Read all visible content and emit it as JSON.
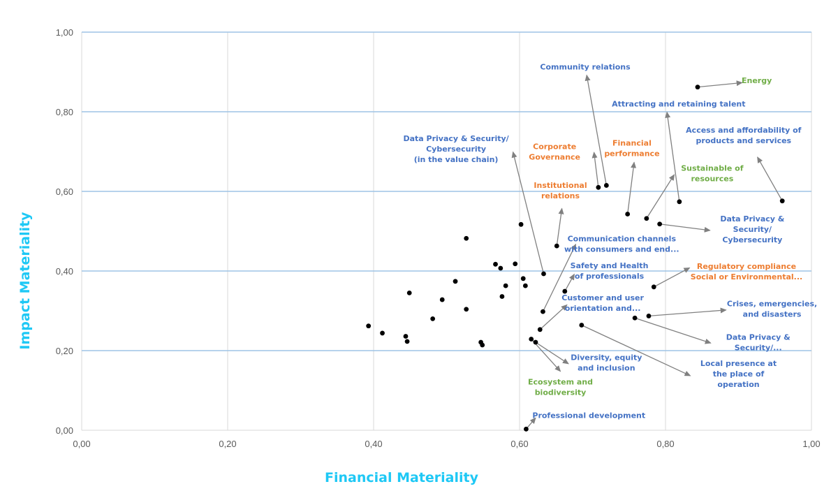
{
  "colors": {
    "background": "#ffffff",
    "gridline": "#9DC3E6",
    "vgridline": "#D9D9D9",
    "axis_title": "#1EC8F5",
    "tick_label": "#595959",
    "point": "#000000",
    "leader": "#808080",
    "social": "#4472C4",
    "environmental": "#70AD47",
    "governance": "#ED7D31"
  },
  "chart_data": {
    "type": "scatter",
    "xlabel": "Financial Materiality",
    "ylabel": "Impact Materiality",
    "xlim": [
      0,
      1
    ],
    "ylim": [
      0,
      1
    ],
    "xticks": [
      "0,00",
      "0,20",
      "0,40",
      "0,60",
      "0,80",
      "1,00"
    ],
    "yticks": [
      "0,00",
      "0,20",
      "0,40",
      "0,60",
      "0,80",
      "1,00"
    ],
    "horizontal_grid": true,
    "vertical_grid": true,
    "points": [
      {
        "x": 0.393,
        "y": 0.262
      },
      {
        "x": 0.412,
        "y": 0.244
      },
      {
        "x": 0.444,
        "y": 0.236
      },
      {
        "x": 0.446,
        "y": 0.223
      },
      {
        "x": 0.449,
        "y": 0.345
      },
      {
        "x": 0.481,
        "y": 0.28
      },
      {
        "x": 0.494,
        "y": 0.328
      },
      {
        "x": 0.512,
        "y": 0.374
      },
      {
        "x": 0.527,
        "y": 0.482
      },
      {
        "x": 0.527,
        "y": 0.304
      },
      {
        "x": 0.547,
        "y": 0.221
      },
      {
        "x": 0.549,
        "y": 0.214
      },
      {
        "x": 0.567,
        "y": 0.417
      },
      {
        "x": 0.574,
        "y": 0.407
      },
      {
        "x": 0.576,
        "y": 0.336
      },
      {
        "x": 0.581,
        "y": 0.363
      },
      {
        "x": 0.594,
        "y": 0.418
      },
      {
        "x": 0.602,
        "y": 0.517
      },
      {
        "x": 0.605,
        "y": 0.381
      },
      {
        "x": 0.608,
        "y": 0.363
      },
      {
        "x": 0.609,
        "y": 0.003
      },
      {
        "x": 0.616,
        "y": 0.229
      },
      {
        "x": 0.622,
        "y": 0.221
      },
      {
        "x": 0.628,
        "y": 0.253
      },
      {
        "x": 0.632,
        "y": 0.298
      },
      {
        "x": 0.633,
        "y": 0.393
      },
      {
        "x": 0.651,
        "y": 0.463
      },
      {
        "x": 0.662,
        "y": 0.349
      },
      {
        "x": 0.685,
        "y": 0.264
      },
      {
        "x": 0.708,
        "y": 0.61
      },
      {
        "x": 0.719,
        "y": 0.615
      },
      {
        "x": 0.748,
        "y": 0.543
      },
      {
        "x": 0.758,
        "y": 0.282
      },
      {
        "x": 0.774,
        "y": 0.532
      },
      {
        "x": 0.777,
        "y": 0.287
      },
      {
        "x": 0.784,
        "y": 0.36
      },
      {
        "x": 0.792,
        "y": 0.518
      },
      {
        "x": 0.819,
        "y": 0.574
      },
      {
        "x": 0.844,
        "y": 0.862
      },
      {
        "x": 0.96,
        "y": 0.576
      }
    ],
    "annotations": [
      {
        "lines": [
          "Community relations"
        ],
        "category": "social",
        "from": [
          0.719,
          0.615
        ],
        "to": [
          0.692,
          0.892
        ],
        "lx": 0.69,
        "ly": 0.906
      },
      {
        "lines": [
          "Energy"
        ],
        "category": "environmental",
        "from": [
          0.844,
          0.862
        ],
        "to": [
          0.905,
          0.873
        ],
        "lx": 0.925,
        "ly": 0.872
      },
      {
        "lines": [
          "Attracting and retaining talent"
        ],
        "category": "social",
        "from": [
          0.819,
          0.574
        ],
        "to": [
          0.802,
          0.799
        ],
        "lx": 0.818,
        "ly": 0.813
      },
      {
        "lines": [
          "Data Privacy & Security/",
          "Cybersecurity",
          "(in the value chain)"
        ],
        "category": "social",
        "from": [
          0.633,
          0.393
        ],
        "to": [
          0.591,
          0.699
        ],
        "lx": 0.513,
        "ly": 0.726
      },
      {
        "lines": [
          "Corporate",
          "Governance"
        ],
        "category": "governance",
        "from": [
          0.708,
          0.61
        ],
        "to": [
          0.702,
          0.698
        ],
        "lx": 0.648,
        "ly": 0.706
      },
      {
        "lines": [
          "Financial",
          "performance"
        ],
        "category": "governance",
        "from": [
          0.748,
          0.543
        ],
        "to": [
          0.757,
          0.673
        ],
        "lx": 0.754,
        "ly": 0.715
      },
      {
        "lines": [
          "Access and affordability of",
          "products and services"
        ],
        "category": "social",
        "from": [
          0.96,
          0.576
        ],
        "to": [
          0.926,
          0.686
        ],
        "lx": 0.907,
        "ly": 0.747
      },
      {
        "lines": [
          "Sustainable of",
          "resources"
        ],
        "category": "environmental",
        "from": [
          0.774,
          0.532
        ],
        "to": [
          0.812,
          0.642
        ],
        "lx": 0.864,
        "ly": 0.652
      },
      {
        "lines": [
          "Institutional",
          "relations"
        ],
        "category": "governance",
        "from": [
          0.651,
          0.463
        ],
        "to": [
          0.658,
          0.557
        ],
        "lx": 0.656,
        "ly": 0.609
      },
      {
        "lines": [
          "Data Privacy &",
          "Security/",
          "Cybersecurity"
        ],
        "category": "social",
        "from": [
          0.792,
          0.518
        ],
        "to": [
          0.861,
          0.502
        ],
        "lx": 0.919,
        "ly": 0.525
      },
      {
        "lines": [
          "Communication channels",
          "with consumers and end..."
        ],
        "category": "social",
        "from": [
          0.632,
          0.298
        ],
        "to": [
          0.677,
          0.467
        ],
        "lx": 0.74,
        "ly": 0.475
      },
      {
        "lines": [
          "Safety and Health",
          "of professionals"
        ],
        "category": "social",
        "from": [
          0.662,
          0.349
        ],
        "to": [
          0.675,
          0.392
        ],
        "lx": 0.723,
        "ly": 0.407
      },
      {
        "lines": [
          "Regulatory compliance",
          "Social or Environmental..."
        ],
        "category": "governance",
        "from": [
          0.784,
          0.36
        ],
        "to": [
          0.833,
          0.408
        ],
        "lx": 0.911,
        "ly": 0.405
      },
      {
        "lines": [
          "Customer and user",
          "orientation and..."
        ],
        "category": "social",
        "from": [
          0.628,
          0.253
        ],
        "to": [
          0.665,
          0.315
        ],
        "lx": 0.714,
        "ly": 0.326
      },
      {
        "lines": [
          "Crises, emergencies,",
          "and disasters"
        ],
        "category": "social",
        "from": [
          0.777,
          0.287
        ],
        "to": [
          0.883,
          0.302
        ],
        "lx": 0.946,
        "ly": 0.311
      },
      {
        "lines": [
          "Data Privacy &",
          "Security/..."
        ],
        "category": "social",
        "from": [
          0.758,
          0.282
        ],
        "to": [
          0.862,
          0.219
        ],
        "lx": 0.927,
        "ly": 0.227
      },
      {
        "lines": [
          "Diversity, equity",
          "and inclusion"
        ],
        "category": "social",
        "from": [
          0.622,
          0.221
        ],
        "to": [
          0.667,
          0.167
        ],
        "lx": 0.719,
        "ly": 0.176
      },
      {
        "lines": [
          "Ecosystem and",
          "biodiversity"
        ],
        "category": "environmental",
        "from": [
          0.616,
          0.229
        ],
        "to": [
          0.656,
          0.148
        ],
        "lx": 0.656,
        "ly": 0.115
      },
      {
        "lines": [
          "Local presence at",
          "the place of",
          "operation"
        ],
        "category": "social",
        "from": [
          0.685,
          0.264
        ],
        "to": [
          0.834,
          0.137
        ],
        "lx": 0.9,
        "ly": 0.161
      },
      {
        "lines": [
          "Professional development"
        ],
        "category": "social",
        "from": [
          0.609,
          0.003
        ],
        "to": [
          0.622,
          0.031
        ],
        "lx": 0.695,
        "ly": 0.031
      }
    ]
  }
}
